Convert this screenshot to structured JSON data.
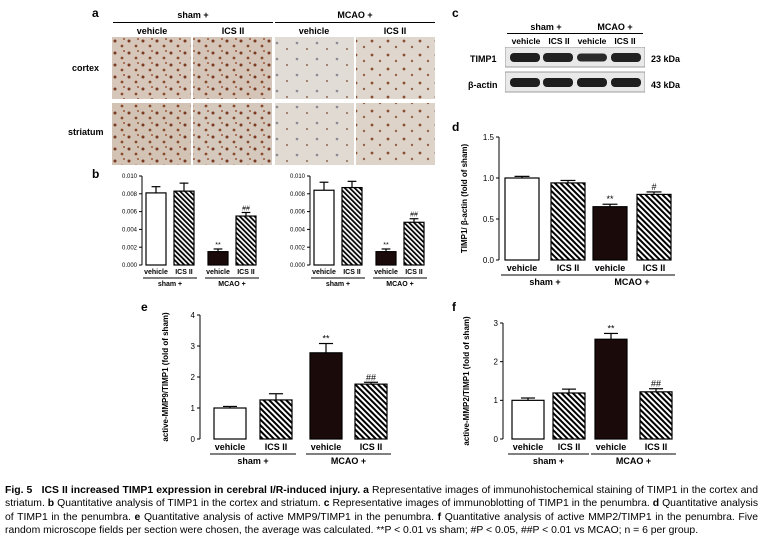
{
  "panels": {
    "a": {
      "label": "a",
      "group_headers": [
        "sham +",
        "MCAO +"
      ],
      "col_headers": [
        "vehicle",
        "ICS II",
        "vehicle",
        "ICS II"
      ],
      "row_labels": [
        "cortex",
        "striatum"
      ]
    },
    "c": {
      "label": "c",
      "group_headers": [
        "sham +",
        "MCAO +"
      ],
      "col_headers": [
        "vehicle",
        "ICS II",
        "vehicle",
        "ICS II"
      ],
      "bands": [
        "TIMP1",
        "β-actin"
      ],
      "sizes": [
        "23 kDa",
        "43 kDa"
      ]
    }
  },
  "chart_data": [
    {
      "id": "b-cortex",
      "panel_label": "b",
      "type": "bar",
      "categories": [
        "vehicle",
        "ICS II",
        "vehicle",
        "ICS II"
      ],
      "groups": [
        "sham +",
        "MCAO +"
      ],
      "values": [
        0.0081,
        0.0083,
        0.0015,
        0.0055
      ],
      "errors": [
        0.0007,
        0.0009,
        0.0003,
        0.0004
      ],
      "sig": [
        "",
        "",
        "**",
        "##"
      ],
      "ylim": [
        0,
        0.01
      ],
      "yticks": [
        "0.000",
        "0.002",
        "0.004",
        "0.006",
        "0.008",
        "0.010"
      ],
      "ylabel": ""
    },
    {
      "id": "b-striatum",
      "type": "bar",
      "categories": [
        "vehicle",
        "ICS II",
        "vehicle",
        "ICS II"
      ],
      "groups": [
        "sham +",
        "MCAO +"
      ],
      "values": [
        0.0084,
        0.0087,
        0.0015,
        0.0048
      ],
      "errors": [
        0.0009,
        0.0007,
        0.0003,
        0.0004
      ],
      "sig": [
        "",
        "",
        "**",
        "##"
      ],
      "ylim": [
        0,
        0.01
      ],
      "yticks": [
        "0.000",
        "0.002",
        "0.004",
        "0.006",
        "0.008",
        "0.010"
      ],
      "ylabel": ""
    },
    {
      "id": "d",
      "panel_label": "d",
      "type": "bar",
      "categories": [
        "vehicle",
        "ICS II",
        "vehicle",
        "ICS II"
      ],
      "groups": [
        "sham +",
        "MCAO +"
      ],
      "values": [
        1.0,
        0.94,
        0.65,
        0.8
      ],
      "errors": [
        0.02,
        0.03,
        0.03,
        0.03
      ],
      "sig": [
        "",
        "",
        "**",
        "#"
      ],
      "ylim": [
        0,
        1.5
      ],
      "yticks": [
        "0.0",
        "0.5",
        "1.0",
        "1.5"
      ],
      "ylabel": "TIMP1/ β-actin (fold of sham)"
    },
    {
      "id": "e",
      "panel_label": "e",
      "type": "bar",
      "categories": [
        "vehicle",
        "ICS II",
        "vehicle",
        "ICS II"
      ],
      "groups": [
        "sham +",
        "MCAO +"
      ],
      "values": [
        1.0,
        1.26,
        2.78,
        1.77
      ],
      "errors": [
        0.05,
        0.2,
        0.3,
        0.06
      ],
      "sig": [
        "",
        "",
        "**",
        "##"
      ],
      "ylim": [
        0,
        4
      ],
      "yticks": [
        "0",
        "1",
        "2",
        "3",
        "4"
      ],
      "ylabel": "active-MMP9/TIMP1 (fold of sham)"
    },
    {
      "id": "f",
      "panel_label": "f",
      "type": "bar",
      "categories": [
        "vehicle",
        "ICS II",
        "vehicle",
        "ICS II"
      ],
      "groups": [
        "sham +",
        "MCAO +"
      ],
      "values": [
        1.0,
        1.19,
        2.58,
        1.22
      ],
      "errors": [
        0.06,
        0.1,
        0.15,
        0.08
      ],
      "sig": [
        "",
        "",
        "**",
        "##"
      ],
      "ylim": [
        0,
        3
      ],
      "yticks": [
        "0",
        "1",
        "2",
        "3"
      ],
      "ylabel": "active-MMP2/TIMP1 (fold of sham)"
    }
  ],
  "caption": {
    "fig": "Fig. 5",
    "title": "ICS II increased TIMP1 expression in cerebral I/R-induced injury.",
    "a_label": "a",
    "a_text": "Representative images of immunohistochemical staining of TIMP1 in the cortex and striatum.",
    "b_label": "b",
    "b_text": "Quantitative analysis of TIMP1 in the cortex and striatum.",
    "c_label": "c",
    "c_text": "Representative images of immunoblotting of TIMP1 in the penumbra.",
    "d_label": "d",
    "d_text": "Quantitative analysis of TIMP1 in the penumbra.",
    "e_label": "e",
    "e_text": "Quantitative analysis of active MMP9/TIMP1 in the penumbra.",
    "f_label": "f",
    "f_text": "Quantitative analysis of active MMP2/TIMP1 in the penumbra. Five random microscope fields per section were chosen, the average was calculated. **P < 0.01 vs sham; #P < 0.05, ##P < 0.01 vs MCAO; n = 6 per group."
  }
}
